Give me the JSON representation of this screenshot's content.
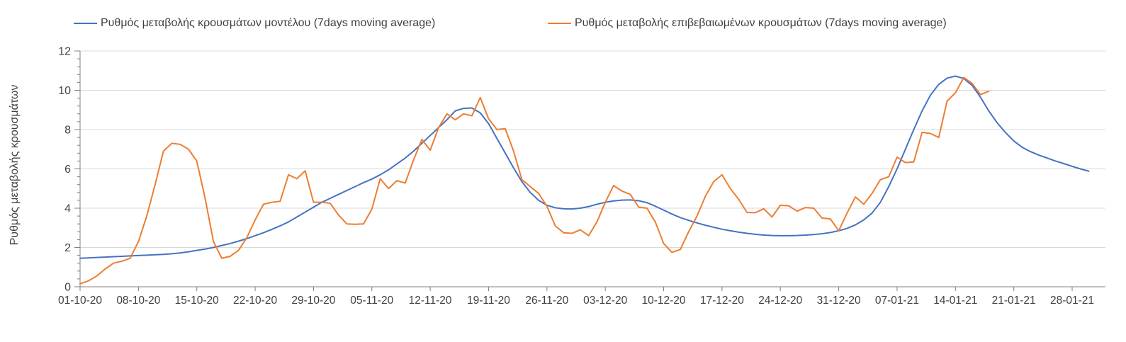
{
  "y_axis_title": "Ρυθμός μεταβολής κρουσμάτων",
  "chart_data": {
    "type": "line",
    "title": "",
    "xlabel": "",
    "ylabel": "Ρυθμός μεταβολής κρουσμάτων",
    "ylim": [
      0,
      12
    ],
    "y_ticks": [
      0,
      2,
      4,
      6,
      8,
      10,
      12
    ],
    "grid": "horizontal",
    "legend_position": "top",
    "x_unit": "daily points starting 01-10-20; axis ticks every 7 days",
    "x_tick_labels": [
      "01-10-20",
      "08-10-20",
      "15-10-20",
      "22-10-20",
      "29-10-20",
      "05-11-20",
      "12-11-20",
      "19-11-20",
      "26-11-20",
      "03-12-20",
      "10-12-20",
      "17-12-20",
      "24-12-20",
      "31-12-20",
      "07-01-21",
      "14-01-21",
      "21-01-21",
      "28-01-21"
    ],
    "series": [
      {
        "name": "Ρυθμός μεταβολής κρουσμάτων μοντέλου (7days moving average)",
        "color": "#4472C4",
        "start_date": "01-10-20",
        "end_date": "30-01-21",
        "values": [
          1.45,
          1.47,
          1.49,
          1.51,
          1.53,
          1.55,
          1.57,
          1.59,
          1.61,
          1.63,
          1.65,
          1.68,
          1.72,
          1.78,
          1.85,
          1.92,
          2.0,
          2.1,
          2.2,
          2.32,
          2.45,
          2.6,
          2.75,
          2.92,
          3.1,
          3.3,
          3.55,
          3.8,
          4.05,
          4.3,
          4.5,
          4.7,
          4.9,
          5.1,
          5.3,
          5.48,
          5.7,
          5.95,
          6.25,
          6.55,
          6.9,
          7.3,
          7.7,
          8.1,
          8.5,
          8.95,
          9.08,
          9.1,
          8.85,
          8.3,
          7.55,
          6.8,
          6.05,
          5.35,
          4.8,
          4.4,
          4.15,
          4.02,
          3.97,
          3.96,
          4.0,
          4.08,
          4.2,
          4.3,
          4.37,
          4.41,
          4.42,
          4.38,
          4.28,
          4.1,
          3.9,
          3.7,
          3.52,
          3.38,
          3.25,
          3.13,
          3.03,
          2.93,
          2.85,
          2.78,
          2.72,
          2.67,
          2.63,
          2.61,
          2.6,
          2.6,
          2.61,
          2.63,
          2.66,
          2.7,
          2.76,
          2.85,
          2.97,
          3.15,
          3.4,
          3.75,
          4.3,
          5.1,
          6.0,
          7.0,
          8.0,
          8.95,
          9.75,
          10.3,
          10.62,
          10.72,
          10.6,
          10.25,
          9.65,
          8.95,
          8.35,
          7.85,
          7.42,
          7.1,
          6.88,
          6.7,
          6.55,
          6.4,
          6.27,
          6.13,
          6.0,
          5.88
        ]
      },
      {
        "name": "Ρυθμός μεταβολής επιβεβαιωμένων κρουσμάτων (7days moving average)",
        "color": "#ED7D31",
        "start_date": "01-10-20",
        "end_date": "18-01-21",
        "values": [
          0.15,
          0.3,
          0.55,
          0.9,
          1.2,
          1.3,
          1.45,
          2.3,
          3.6,
          5.2,
          6.9,
          7.3,
          7.25,
          7.0,
          6.4,
          4.5,
          2.3,
          1.45,
          1.55,
          1.85,
          2.5,
          3.4,
          4.2,
          4.3,
          4.35,
          5.7,
          5.5,
          5.9,
          4.3,
          4.3,
          4.25,
          3.65,
          3.2,
          3.18,
          3.2,
          3.95,
          5.5,
          5.0,
          5.4,
          5.28,
          6.45,
          7.5,
          6.95,
          8.1,
          8.8,
          8.5,
          8.8,
          8.7,
          9.63,
          8.55,
          8.0,
          8.05,
          6.9,
          5.45,
          5.1,
          4.75,
          4.1,
          3.1,
          2.75,
          2.72,
          2.9,
          2.6,
          3.3,
          4.3,
          5.15,
          4.87,
          4.7,
          4.05,
          4.0,
          3.3,
          2.2,
          1.75,
          1.9,
          2.8,
          3.6,
          4.6,
          5.35,
          5.7,
          5.0,
          4.45,
          3.78,
          3.77,
          3.97,
          3.55,
          4.15,
          4.12,
          3.85,
          4.03,
          4.0,
          3.5,
          3.45,
          2.85,
          3.75,
          4.57,
          4.2,
          4.75,
          5.45,
          5.6,
          6.6,
          6.32,
          6.35,
          7.86,
          7.8,
          7.6,
          9.45,
          9.87,
          10.65,
          10.35,
          9.78,
          9.95
        ]
      }
    ],
    "colors": {
      "gridline": "#D9D9D9",
      "axis": "#808080",
      "text": "#404040",
      "background": "#FFFFFF"
    }
  }
}
